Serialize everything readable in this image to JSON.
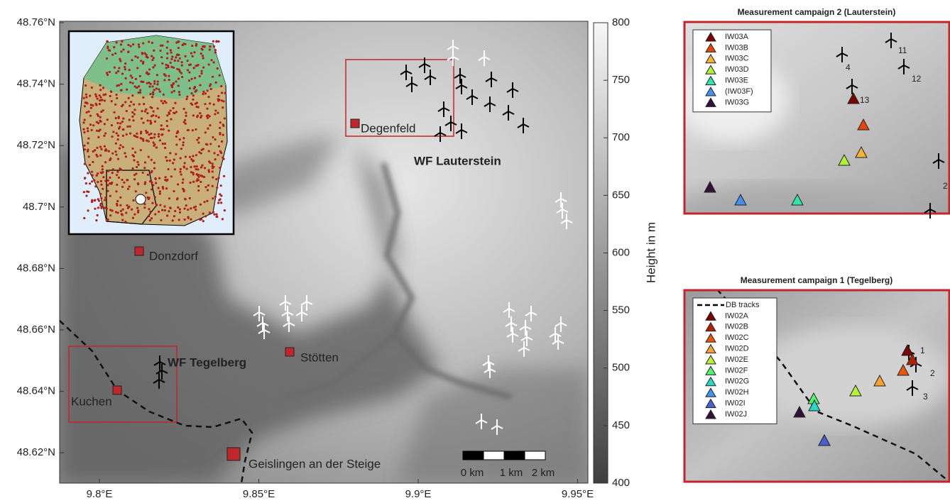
{
  "map": {
    "lat_ticks": [
      "48.76°N",
      "48.74°N",
      "48.72°N",
      "48.7°N",
      "48.68°N",
      "48.66°N",
      "48.64°N",
      "48.62°N"
    ],
    "lon_ticks": [
      "9.8°E",
      "9.85°E",
      "9.9°E",
      "9.95°E"
    ],
    "places": [
      "Degenfeld",
      "Donzdorf",
      "Stötten",
      "Kuchen",
      "Geislingen an der Steige"
    ],
    "wind_farms": [
      "WF Lauterstein",
      "WF Tegelberg"
    ],
    "scale_bar": [
      "0 km",
      "1 km",
      "2 km"
    ],
    "colorbar": {
      "label": "Height in m",
      "ticks": [
        400,
        450,
        500,
        550,
        600,
        650,
        700,
        750,
        800
      ],
      "lim": [
        400,
        800
      ]
    }
  },
  "panels": [
    {
      "title": "Measurement campaign 2 (Lauterstein)",
      "legend": [
        {
          "name": "IW03A",
          "color": "#7a0403"
        },
        {
          "name": "IW03B",
          "color": "#e4460a"
        },
        {
          "name": "IW03C",
          "color": "#f5b32f"
        },
        {
          "name": "IW03D",
          "color": "#b1f13c"
        },
        {
          "name": "IW03E",
          "color": "#2ee5ae"
        },
        {
          "name": "(IW03F)",
          "color": "#4490f0"
        },
        {
          "name": "IW03G",
          "color": "#30123b"
        }
      ],
      "turbine_labels": [
        "4",
        "11",
        "12",
        "13",
        "2"
      ]
    },
    {
      "title": "Measurement campaign 1 (Tegelberg)",
      "legend": [
        {
          "name": "DB tracks",
          "color": "#000000",
          "style": "dashed"
        },
        {
          "name": "IW02A",
          "color": "#7a0403"
        },
        {
          "name": "IW02B",
          "color": "#b51f05"
        },
        {
          "name": "IW02C",
          "color": "#e8560b"
        },
        {
          "name": "IW02D",
          "color": "#f9a22f"
        },
        {
          "name": "IW02E",
          "color": "#b8f03a"
        },
        {
          "name": "IW02F",
          "color": "#52f56f"
        },
        {
          "name": "IW02G",
          "color": "#28d7c6"
        },
        {
          "name": "IW02H",
          "color": "#3f95ee"
        },
        {
          "name": "IW02I",
          "color": "#4860d0"
        },
        {
          "name": "IW02J",
          "color": "#30123b"
        }
      ],
      "turbine_labels": [
        "1",
        "2",
        "3"
      ]
    }
  ]
}
